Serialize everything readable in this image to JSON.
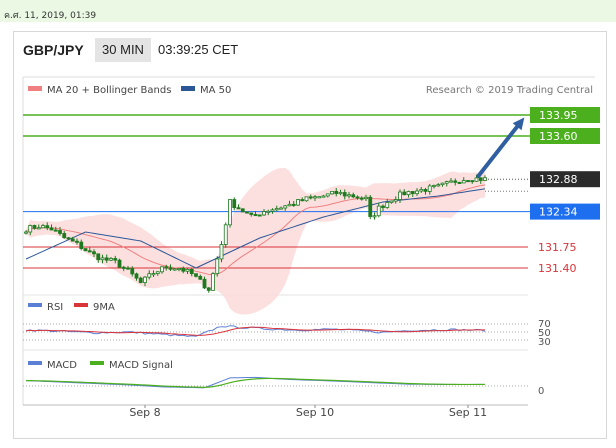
{
  "timestamp": "ค.ศ. 11, 2019, 01:39",
  "header": {
    "symbol": "GBP/JPY",
    "interval": "30 MIN",
    "time": "03:39:25 CET"
  },
  "colors": {
    "ma20": "#f08080",
    "ma50": "#2b5797",
    "support": "#d9343a",
    "resistance": "#4caf1e",
    "pivot": "#1e6ff0",
    "candle": "#1f7a1f",
    "arrow": "#2f5fa0"
  },
  "chart_data": {
    "type": "line",
    "legend": [
      {
        "name": "MA 20 + Bollinger Bands",
        "color": "#f08080"
      },
      {
        "name": "MA 50",
        "color": "#2b5797"
      }
    ],
    "credit": "Research © 2019 Trading Central",
    "price_range": [
      131.0,
      134.2
    ],
    "x_labels": [
      {
        "label": "Sep 8",
        "index": 28
      },
      {
        "label": "Sep 10",
        "index": 68
      },
      {
        "label": "Sep 11",
        "index": 104
      }
    ],
    "levels": [
      {
        "value": 133.95,
        "label": "133.95",
        "kind": "resistance"
      },
      {
        "value": 133.6,
        "label": "133.60",
        "kind": "resistance"
      },
      {
        "value": 132.88,
        "label": "132.88",
        "kind": "last"
      },
      {
        "value": 132.34,
        "label": "132.34",
        "kind": "pivot"
      },
      {
        "value": 131.75,
        "label": "131.75",
        "kind": "support"
      },
      {
        "value": 131.4,
        "label": "131.40",
        "kind": "support"
      }
    ],
    "price_anchors": [
      [
        0,
        132.05
      ],
      [
        3,
        132.1
      ],
      [
        6,
        132.05
      ],
      [
        9,
        131.9
      ],
      [
        12,
        131.8
      ],
      [
        15,
        131.65
      ],
      [
        18,
        131.55
      ],
      [
        21,
        131.5
      ],
      [
        24,
        131.35
      ],
      [
        27,
        131.15
      ],
      [
        30,
        131.32
      ],
      [
        33,
        131.42
      ],
      [
        36,
        131.4
      ],
      [
        39,
        131.3
      ],
      [
        43,
        131.05
      ],
      [
        46,
        131.8
      ],
      [
        48,
        132.5
      ],
      [
        50,
        132.4
      ],
      [
        53,
        132.25
      ],
      [
        56,
        132.35
      ],
      [
        59,
        132.4
      ],
      [
        62,
        132.45
      ],
      [
        66,
        132.55
      ],
      [
        70,
        132.6
      ],
      [
        73,
        132.65
      ],
      [
        77,
        132.6
      ],
      [
        80,
        132.55
      ],
      [
        81,
        132.22
      ],
      [
        83,
        132.4
      ],
      [
        86,
        132.55
      ],
      [
        89,
        132.65
      ],
      [
        93,
        132.7
      ],
      [
        97,
        132.75
      ],
      [
        101,
        132.85
      ],
      [
        104,
        132.9
      ],
      [
        108,
        132.88
      ]
    ],
    "ma50_anchors": [
      [
        0,
        131.55
      ],
      [
        14,
        132.0
      ],
      [
        27,
        131.85
      ],
      [
        40,
        131.4
      ],
      [
        55,
        131.9
      ],
      [
        70,
        132.25
      ],
      [
        84,
        132.5
      ],
      [
        97,
        132.6
      ],
      [
        108,
        132.72
      ]
    ],
    "rsi": {
      "name": "RSI",
      "signal_name": "9MA",
      "levels": [
        "70",
        "50",
        "30"
      ],
      "anchors": [
        [
          0,
          55
        ],
        [
          8,
          52
        ],
        [
          16,
          48
        ],
        [
          24,
          50
        ],
        [
          32,
          44
        ],
        [
          40,
          38
        ],
        [
          46,
          65
        ],
        [
          50,
          62
        ],
        [
          56,
          58
        ],
        [
          64,
          55
        ],
        [
          72,
          57
        ],
        [
          80,
          52
        ],
        [
          84,
          49
        ],
        [
          90,
          54
        ],
        [
          100,
          56
        ],
        [
          108,
          54
        ]
      ]
    },
    "macd": {
      "name": "MACD",
      "signal_name": "MACD Signal",
      "zero_label": "0",
      "anchors": [
        [
          0,
          0.3
        ],
        [
          12,
          0.18
        ],
        [
          24,
          0.06
        ],
        [
          32,
          -0.05
        ],
        [
          42,
          -0.1
        ],
        [
          48,
          0.45
        ],
        [
          54,
          0.48
        ],
        [
          62,
          0.36
        ],
        [
          72,
          0.28
        ],
        [
          82,
          0.18
        ],
        [
          90,
          0.1
        ],
        [
          100,
          0.08
        ],
        [
          108,
          0.09
        ]
      ]
    }
  }
}
